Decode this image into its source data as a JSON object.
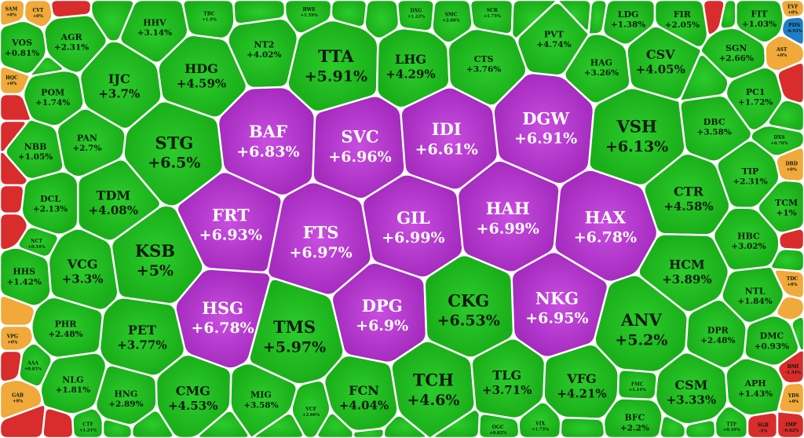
{
  "chart_data": {
    "type": "heatmap",
    "title": "",
    "colors": {
      "ceiling": "#b12fca",
      "up": "#1fb81f",
      "flat": "#f0a93a",
      "down": "#d92c2c",
      "floor": "#1e7ec8",
      "border": "#ffffff"
    },
    "cells": [
      {
        "ticker": "BAF",
        "change": "+6.83%",
        "status": "ceiling",
        "size": 3
      },
      {
        "ticker": "SVC",
        "change": "+6.96%",
        "status": "ceiling",
        "size": 3
      },
      {
        "ticker": "IDI",
        "change": "+6.61%",
        "status": "ceiling",
        "size": 3
      },
      {
        "ticker": "DGW",
        "change": "+6.91%",
        "status": "ceiling",
        "size": 3
      },
      {
        "ticker": "FRT",
        "change": "+6.93%",
        "status": "ceiling",
        "size": 3
      },
      {
        "ticker": "FTS",
        "change": "+6.97%",
        "status": "ceiling",
        "size": 3
      },
      {
        "ticker": "GIL",
        "change": "+6.99%",
        "status": "ceiling",
        "size": 3
      },
      {
        "ticker": "HAH",
        "change": "+6.99%",
        "status": "ceiling",
        "size": 3
      },
      {
        "ticker": "HAX",
        "change": "+6.78%",
        "status": "ceiling",
        "size": 3
      },
      {
        "ticker": "HSG",
        "change": "+6.78%",
        "status": "ceiling",
        "size": 3
      },
      {
        "ticker": "DPG",
        "change": "+6.9%",
        "status": "ceiling",
        "size": 3
      },
      {
        "ticker": "NKG",
        "change": "+6.95%",
        "status": "ceiling",
        "size": 3
      },
      {
        "ticker": "STG",
        "change": "+6.5%",
        "status": "up",
        "size": 3
      },
      {
        "ticker": "TTA",
        "change": "+5.91%",
        "status": "up",
        "size": 3
      },
      {
        "ticker": "VSH",
        "change": "+6.13%",
        "status": "up",
        "size": 3
      },
      {
        "ticker": "KSB",
        "change": "+5%",
        "status": "up",
        "size": 3
      },
      {
        "ticker": "TMS",
        "change": "+5.97%",
        "status": "up",
        "size": 3
      },
      {
        "ticker": "CKG",
        "change": "+6.53%",
        "status": "up",
        "size": 3
      },
      {
        "ticker": "ANV",
        "change": "+5.2%",
        "status": "up",
        "size": 3
      },
      {
        "ticker": "TCH",
        "change": "+4.6%",
        "status": "up",
        "size": 3
      },
      {
        "ticker": "HDG",
        "change": "+4.59%",
        "status": "up",
        "size": 2
      },
      {
        "ticker": "IJC",
        "change": "+3.7%",
        "status": "up",
        "size": 2
      },
      {
        "ticker": "LHG",
        "change": "+4.29%",
        "status": "up",
        "size": 2
      },
      {
        "ticker": "CSV",
        "change": "+4.05%",
        "status": "up",
        "size": 2
      },
      {
        "ticker": "TDM",
        "change": "+4.08%",
        "status": "up",
        "size": 2
      },
      {
        "ticker": "CTR",
        "change": "+4.58%",
        "status": "up",
        "size": 2
      },
      {
        "ticker": "HCM",
        "change": "+3.89%",
        "status": "up",
        "size": 2
      },
      {
        "ticker": "VCG",
        "change": "+3.3%",
        "status": "up",
        "size": 2
      },
      {
        "ticker": "PET",
        "change": "+3.77%",
        "status": "up",
        "size": 2
      },
      {
        "ticker": "CMG",
        "change": "+4.53%",
        "status": "up",
        "size": 2
      },
      {
        "ticker": "FCN",
        "change": "+4.04%",
        "status": "up",
        "size": 2
      },
      {
        "ticker": "TLG",
        "change": "+3.71%",
        "status": "up",
        "size": 2
      },
      {
        "ticker": "VFG",
        "change": "+4.21%",
        "status": "up",
        "size": 2
      },
      {
        "ticker": "CSM",
        "change": "+3.33%",
        "status": "up",
        "size": 2
      },
      {
        "ticker": "HHV",
        "change": "+3.14%",
        "status": "up",
        "size": 1
      },
      {
        "ticker": "AGR",
        "change": "+2.31%",
        "status": "up",
        "size": 1
      },
      {
        "ticker": "NT2",
        "change": "+4.02%",
        "status": "up",
        "size": 1
      },
      {
        "ticker": "PVT",
        "change": "+4.74%",
        "status": "up",
        "size": 1
      },
      {
        "ticker": "CTS",
        "change": "+3.76%",
        "status": "up",
        "size": 1
      },
      {
        "ticker": "HAG",
        "change": "+3.26%",
        "status": "up",
        "size": 1
      },
      {
        "ticker": "SGN",
        "change": "+2.66%",
        "status": "up",
        "size": 1
      },
      {
        "ticker": "LDG",
        "change": "+1.38%",
        "status": "up",
        "size": 1
      },
      {
        "ticker": "FIR",
        "change": "+2.05%",
        "status": "up",
        "size": 1
      },
      {
        "ticker": "FIT",
        "change": "+1.03%",
        "status": "up",
        "size": 1
      },
      {
        "ticker": "POM",
        "change": "+1.74%",
        "status": "up",
        "size": 1
      },
      {
        "ticker": "PAN",
        "change": "+2.7%",
        "status": "up",
        "size": 1
      },
      {
        "ticker": "DBC",
        "change": "+3.58%",
        "status": "up",
        "size": 1
      },
      {
        "ticker": "PC1",
        "change": "+1.72%",
        "status": "up",
        "size": 1
      },
      {
        "ticker": "TIP",
        "change": "+2.31%",
        "status": "up",
        "size": 1
      },
      {
        "ticker": "DCL",
        "change": "+2.13%",
        "status": "up",
        "size": 1
      },
      {
        "ticker": "TCM",
        "change": "+1%",
        "status": "up",
        "size": 1
      },
      {
        "ticker": "HBC",
        "change": "+3.02%",
        "status": "up",
        "size": 1
      },
      {
        "ticker": "PHR",
        "change": "+2.48%",
        "status": "up",
        "size": 1
      },
      {
        "ticker": "NTL",
        "change": "+1.84%",
        "status": "up",
        "size": 1
      },
      {
        "ticker": "DPR",
        "change": "+2.48%",
        "status": "up",
        "size": 1
      },
      {
        "ticker": "HHS",
        "change": "+1.42%",
        "status": "up",
        "size": 1
      },
      {
        "ticker": "NLG",
        "change": "+1.81%",
        "status": "up",
        "size": 1
      },
      {
        "ticker": "HNG",
        "change": "+2.89%",
        "status": "up",
        "size": 1
      },
      {
        "ticker": "MIG",
        "change": "+3.58%",
        "status": "up",
        "size": 1
      },
      {
        "ticker": "APH",
        "change": "+1.43%",
        "status": "up",
        "size": 1
      },
      {
        "ticker": "DMC",
        "change": "+0.93%",
        "status": "up",
        "size": 1
      },
      {
        "ticker": "NBB",
        "change": "+1.05%",
        "status": "up",
        "size": 1
      },
      {
        "ticker": "VOS",
        "change": "+0.81%",
        "status": "up",
        "size": 1
      },
      {
        "ticker": "BFC",
        "change": "+2.2%",
        "status": "up",
        "size": 1
      },
      {
        "ticker": "VCF",
        "change": "+2.66%",
        "status": "up",
        "size": 0
      },
      {
        "ticker": "CTF",
        "change": "+1.24%",
        "status": "up",
        "size": 0
      },
      {
        "ticker": "AAA",
        "change": "+0.85%",
        "status": "up",
        "size": 0
      },
      {
        "ticker": "VIX",
        "change": "+1.75%",
        "status": "up",
        "size": 0
      },
      {
        "ticker": "TBC",
        "change": "+1.9%",
        "status": "up",
        "size": 0
      },
      {
        "ticker": "BWE",
        "change": "+1.59%",
        "status": "up",
        "size": 0
      },
      {
        "ticker": "DXG",
        "change": "+1.22%",
        "status": "up",
        "size": 0
      },
      {
        "ticker": "SMC",
        "change": "+2.88%",
        "status": "up",
        "size": 0
      },
      {
        "ticker": "SCR",
        "change": "+1.75%",
        "status": "up",
        "size": 0
      },
      {
        "ticker": "DXS",
        "change": "+0.76%",
        "status": "up",
        "size": 0
      },
      {
        "ticker": "FMC",
        "change": "+1.14%",
        "status": "up",
        "size": 0
      },
      {
        "ticker": "TTF",
        "change": "+0.39%",
        "status": "up",
        "size": 0
      },
      {
        "ticker": "OGC",
        "change": "+0.82%",
        "status": "up",
        "size": 0
      },
      {
        "ticker": "NCT",
        "change": "+0.34%",
        "status": "up",
        "size": 0
      },
      {
        "ticker": "SAM",
        "change": "+0%",
        "status": "flat",
        "size": 0
      },
      {
        "ticker": "CVT",
        "change": "+0%",
        "status": "flat",
        "size": 0
      },
      {
        "ticker": "HQC",
        "change": "+0%",
        "status": "flat",
        "size": 0
      },
      {
        "ticker": "VPG",
        "change": "+0%",
        "status": "flat",
        "size": 0
      },
      {
        "ticker": "GAB",
        "change": "+0%",
        "status": "flat",
        "size": 0
      },
      {
        "ticker": "AST",
        "change": "+0%",
        "status": "flat",
        "size": 0
      },
      {
        "ticker": "EVF",
        "change": "+0%",
        "status": "flat",
        "size": 0
      },
      {
        "ticker": "TDC",
        "change": "+0%",
        "status": "flat",
        "size": 0
      },
      {
        "ticker": "YDS",
        "change": "+0%",
        "status": "flat",
        "size": 0
      },
      {
        "ticker": "DBD",
        "change": "+0%",
        "status": "flat",
        "size": 0
      },
      {
        "ticker": "BMI",
        "change": "-1.34%",
        "status": "down",
        "size": 0
      },
      {
        "ticker": "SGR",
        "change": "-4%",
        "status": "down",
        "size": 0
      },
      {
        "ticker": "IMP",
        "change": "-0.82%",
        "status": "down",
        "size": 0
      },
      {
        "ticker": "PDN",
        "change": "-6.93%",
        "status": "floor",
        "size": 0
      }
    ]
  }
}
